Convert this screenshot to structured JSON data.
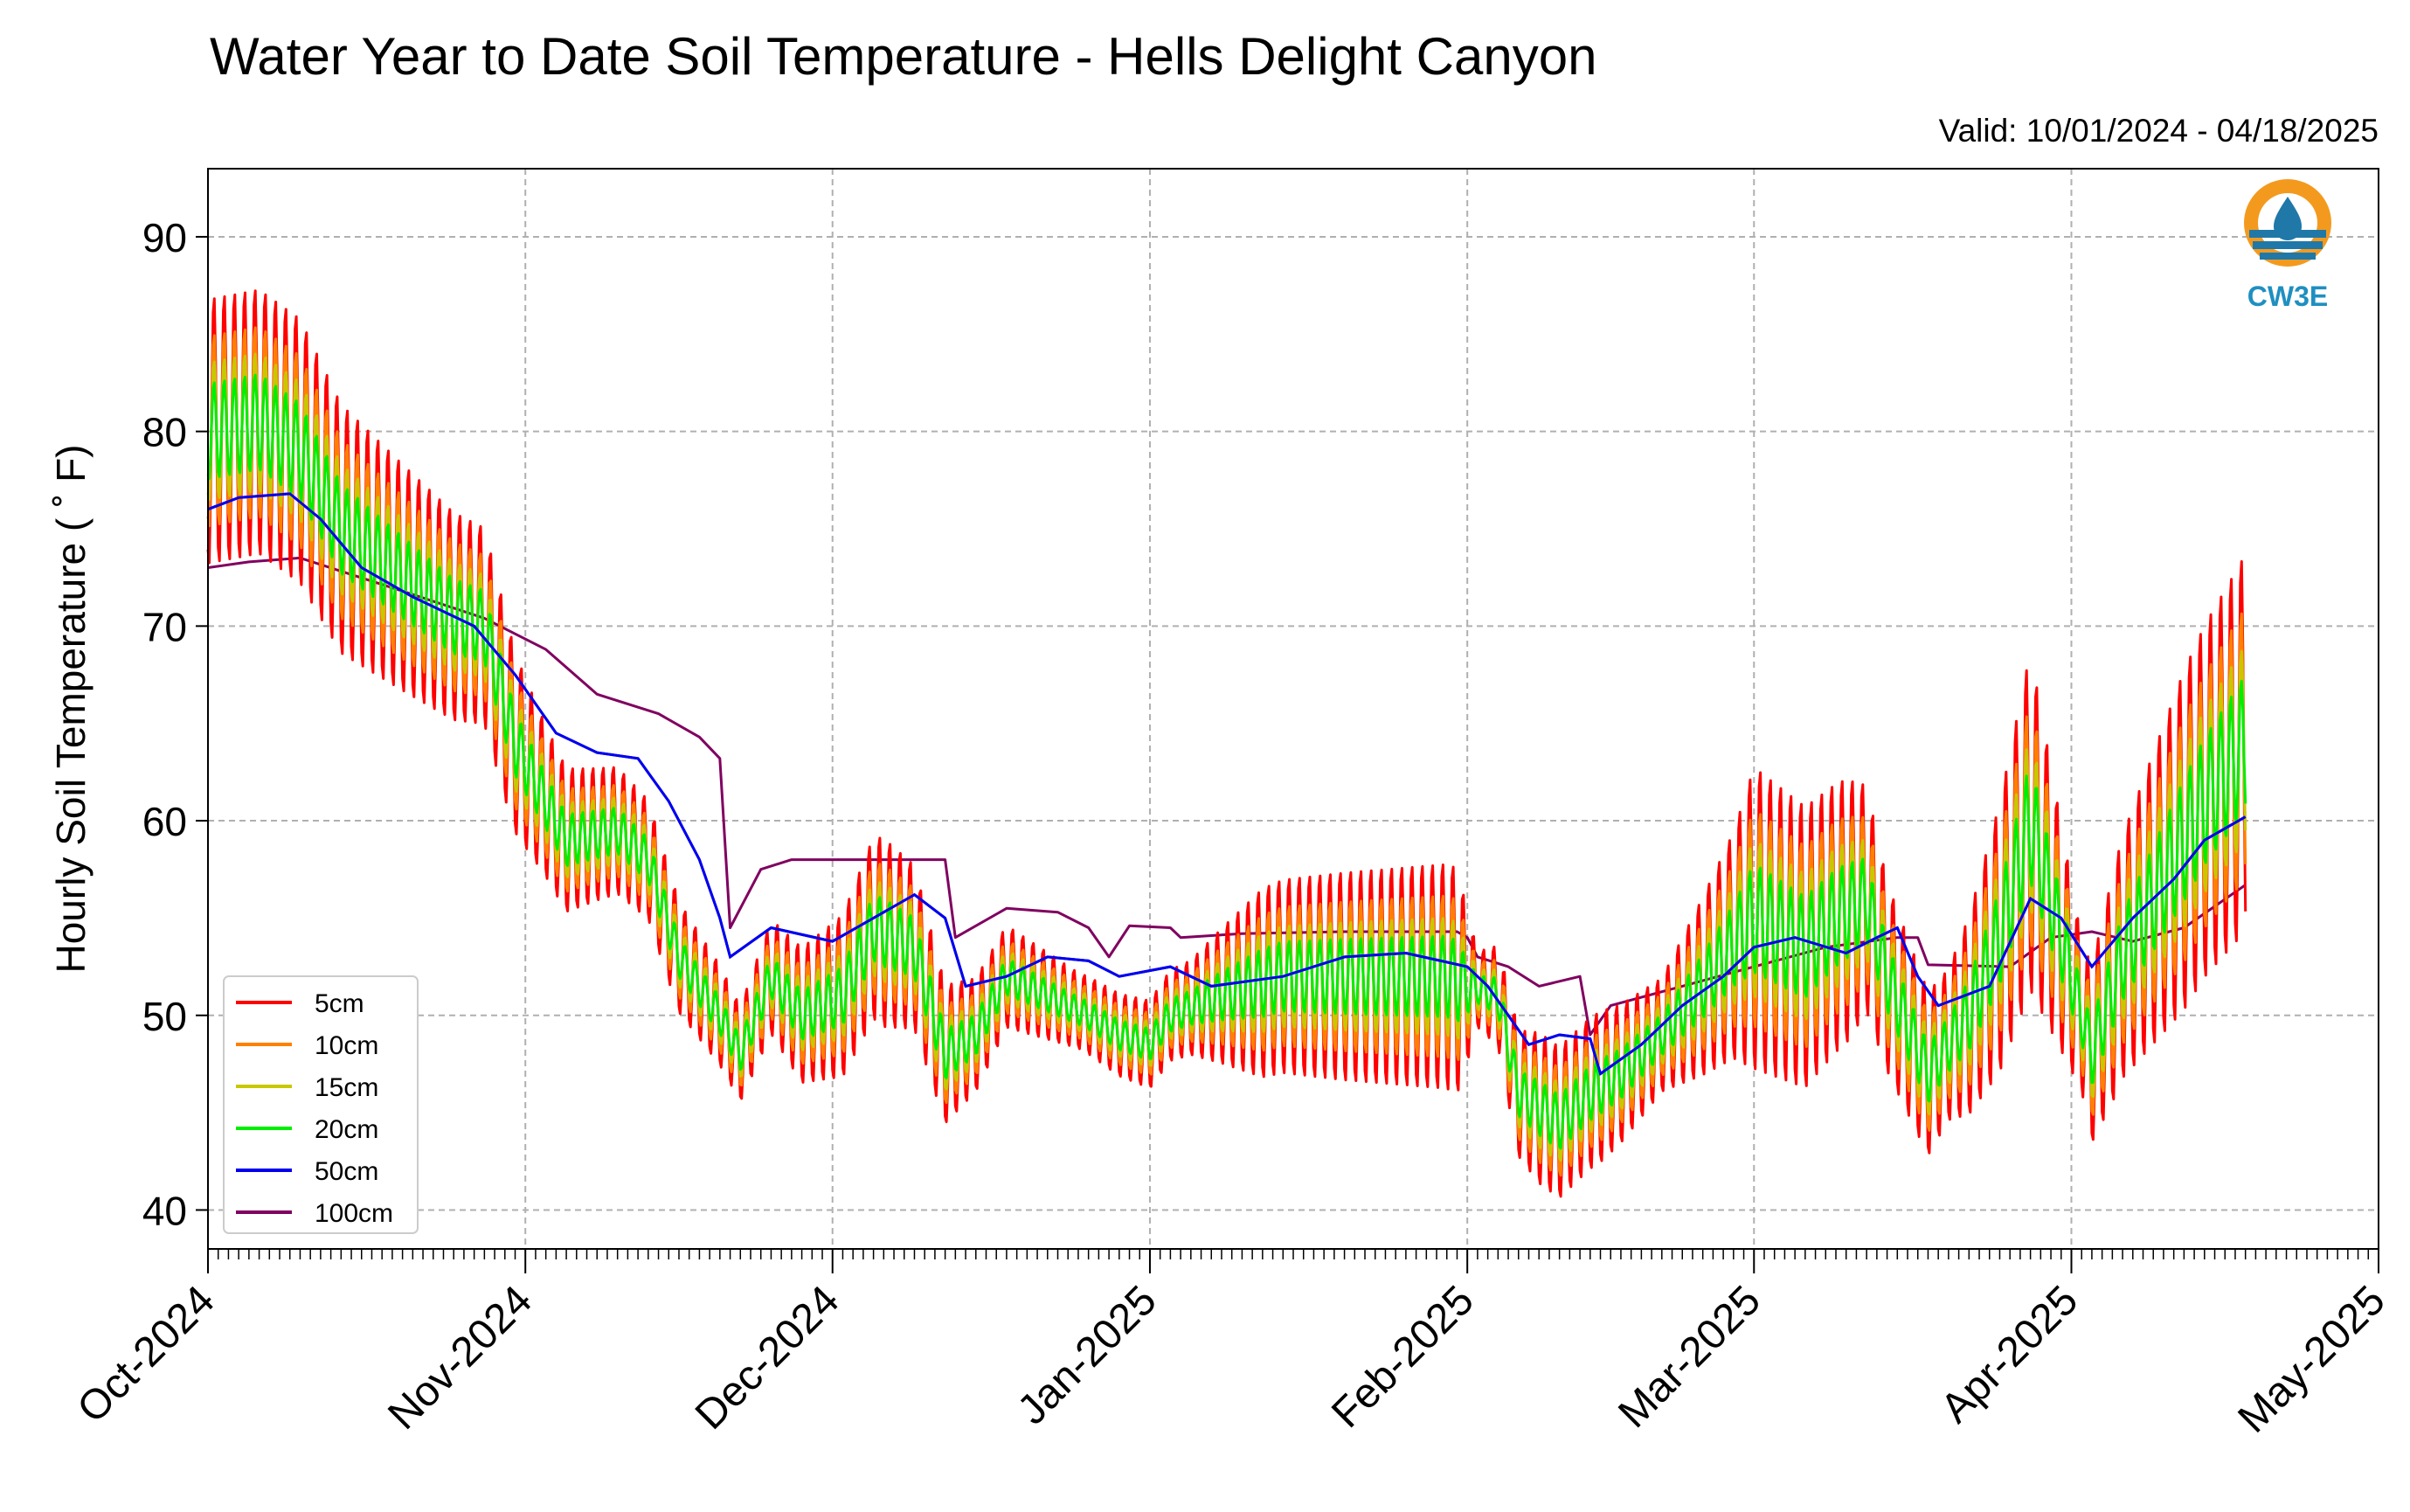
{
  "chart_data": {
    "type": "line",
    "title": "Water Year to Date Soil Temperature - Hells Delight Canyon",
    "valid_label": "Valid: 10/01/2024 - 04/18/2025",
    "logo_text": "CW3E",
    "ylabel": "Hourly Soil Temperature ( ˚ F)",
    "xlabel": "",
    "x_range": [
      "2024-10-01",
      "2025-05-01"
    ],
    "ylim": [
      38,
      93.5
    ],
    "y_ticks": [
      40,
      50,
      60,
      70,
      80,
      90
    ],
    "x_ticks": [
      {
        "date": "2024-10-01",
        "label": "Oct-2024"
      },
      {
        "date": "2024-11-01",
        "label": "Nov-2024"
      },
      {
        "date": "2024-12-01",
        "label": "Dec-2024"
      },
      {
        "date": "2025-01-01",
        "label": "Jan-2025"
      },
      {
        "date": "2025-02-01",
        "label": "Feb-2025"
      },
      {
        "date": "2025-03-01",
        "label": "Mar-2025"
      },
      {
        "date": "2025-04-01",
        "label": "Apr-2025"
      },
      {
        "date": "2025-05-01",
        "label": "May-2025"
      }
    ],
    "grid": true,
    "legend_position": "lower-left",
    "series": [
      {
        "name": "5cm",
        "color": "#ff0000",
        "amplitude": 1.0
      },
      {
        "name": "10cm",
        "color": "#ff8000",
        "amplitude": 0.72
      },
      {
        "name": "15cm",
        "color": "#c8c800",
        "amplitude": 0.52
      },
      {
        "name": "20cm",
        "color": "#00ee00",
        "amplitude": 0.36
      },
      {
        "name": "50cm",
        "color": "#0000ee",
        "amplitude": 0
      },
      {
        "name": "100cm",
        "color": "#800060",
        "amplitude": 0
      }
    ],
    "shallow_daily_mean": [
      [
        "2024-10-01",
        80
      ],
      [
        "2024-10-06",
        80.5
      ],
      [
        "2024-10-10",
        79
      ],
      [
        "2024-10-14",
        75
      ],
      [
        "2024-10-20",
        72.5
      ],
      [
        "2024-10-25",
        70.5
      ],
      [
        "2024-10-28",
        70
      ],
      [
        "2024-10-31",
        64
      ],
      [
        "2024-11-02",
        62
      ],
      [
        "2024-11-05",
        59
      ],
      [
        "2024-11-10",
        59.5
      ],
      [
        "2024-11-13",
        58
      ],
      [
        "2024-11-16",
        53
      ],
      [
        "2024-11-20",
        50
      ],
      [
        "2024-11-22",
        48
      ],
      [
        "2024-11-25",
        52
      ],
      [
        "2024-11-28",
        50
      ],
      [
        "2024-12-02",
        51
      ],
      [
        "2024-12-05",
        54.5
      ],
      [
        "2024-12-09",
        53.5
      ],
      [
        "2024-12-12",
        48
      ],
      [
        "2024-12-15",
        49
      ],
      [
        "2024-12-18",
        52
      ],
      [
        "2024-12-22",
        51
      ],
      [
        "2024-12-26",
        50
      ],
      [
        "2024-12-29",
        49
      ],
      [
        "2025-01-01",
        48.5
      ],
      [
        "2025-01-03",
        50
      ],
      [
        "2025-01-08",
        51
      ],
      [
        "2025-01-14",
        52
      ],
      [
        "2025-01-20",
        52
      ],
      [
        "2025-01-26",
        52
      ],
      [
        "2025-01-30",
        52
      ],
      [
        "2025-02-01",
        51.5
      ],
      [
        "2025-02-04",
        51
      ],
      [
        "2025-02-06",
        46
      ],
      [
        "2025-02-10",
        44.5
      ],
      [
        "2025-02-13",
        46
      ],
      [
        "2025-02-16",
        47
      ],
      [
        "2025-02-20",
        49
      ],
      [
        "2025-02-24",
        51.5
      ],
      [
        "2025-03-01",
        55
      ],
      [
        "2025-03-06",
        53.5
      ],
      [
        "2025-03-09",
        55
      ],
      [
        "2025-03-12",
        56
      ],
      [
        "2025-03-14",
        52
      ],
      [
        "2025-03-18",
        47
      ],
      [
        "2025-03-22",
        50
      ],
      [
        "2025-03-25",
        54
      ],
      [
        "2025-03-28",
        60
      ],
      [
        "2025-03-31",
        54
      ],
      [
        "2025-04-03",
        48
      ],
      [
        "2025-04-06",
        53
      ],
      [
        "2025-04-10",
        57
      ],
      [
        "2025-04-14",
        61
      ],
      [
        "2025-04-18",
        64
      ]
    ],
    "50cm_values": [
      [
        "2024-10-01",
        76
      ],
      [
        "2024-10-04",
        76.6
      ],
      [
        "2024-10-09",
        76.8
      ],
      [
        "2024-10-12",
        75.5
      ],
      [
        "2024-10-16",
        73
      ],
      [
        "2024-10-21",
        71.5
      ],
      [
        "2024-10-27",
        70
      ],
      [
        "2024-10-31",
        67.5
      ],
      [
        "2024-11-04",
        64.5
      ],
      [
        "2024-11-08",
        63.5
      ],
      [
        "2024-11-12",
        63.2
      ],
      [
        "2024-11-15",
        61
      ],
      [
        "2024-11-18",
        58
      ],
      [
        "2024-11-20",
        55
      ],
      [
        "2024-11-21",
        53
      ],
      [
        "2024-11-25",
        54.5
      ],
      [
        "2024-12-01",
        53.8
      ],
      [
        "2024-12-05",
        55
      ],
      [
        "2024-12-09",
        56.2
      ],
      [
        "2024-12-12",
        55
      ],
      [
        "2024-12-14",
        51.5
      ],
      [
        "2024-12-18",
        52
      ],
      [
        "2024-12-22",
        53
      ],
      [
        "2024-12-26",
        52.8
      ],
      [
        "2024-12-29",
        52
      ],
      [
        "2025-01-03",
        52.5
      ],
      [
        "2025-01-07",
        51.5
      ],
      [
        "2025-01-14",
        52
      ],
      [
        "2025-01-20",
        53
      ],
      [
        "2025-01-26",
        53.2
      ],
      [
        "2025-02-01",
        52.5
      ],
      [
        "2025-02-03",
        51.5
      ],
      [
        "2025-02-05",
        50
      ],
      [
        "2025-02-07",
        48.5
      ],
      [
        "2025-02-10",
        49
      ],
      [
        "2025-02-13",
        48.8
      ],
      [
        "2025-02-14",
        47
      ],
      [
        "2025-02-18",
        48.5
      ],
      [
        "2025-02-22",
        50.5
      ],
      [
        "2025-02-26",
        52
      ],
      [
        "2025-03-01",
        53.5
      ],
      [
        "2025-03-05",
        54
      ],
      [
        "2025-03-10",
        53.2
      ],
      [
        "2025-03-13",
        54
      ],
      [
        "2025-03-15",
        54.5
      ],
      [
        "2025-03-17",
        52
      ],
      [
        "2025-03-19",
        50.5
      ],
      [
        "2025-03-24",
        51.5
      ],
      [
        "2025-03-28",
        56
      ],
      [
        "2025-03-31",
        55
      ],
      [
        "2025-04-03",
        52.5
      ],
      [
        "2025-04-07",
        55
      ],
      [
        "2025-04-11",
        57
      ],
      [
        "2025-04-14",
        59
      ],
      [
        "2025-04-18",
        60.2
      ]
    ],
    "100cm_values": [
      [
        "2024-10-01",
        73
      ],
      [
        "2024-10-05",
        73.3
      ],
      [
        "2024-10-10",
        73.5
      ],
      [
        "2024-10-20",
        71.8
      ],
      [
        "2024-10-28",
        70.4
      ],
      [
        "2024-11-03",
        68.8
      ],
      [
        "2024-11-08",
        66.5
      ],
      [
        "2024-11-14",
        65.5
      ],
      [
        "2024-11-18",
        64.3
      ],
      [
        "2024-11-20",
        63.2
      ],
      [
        "2024-11-21",
        54.5
      ],
      [
        "2024-11-24",
        57.5
      ],
      [
        "2024-11-27",
        58
      ],
      [
        "2024-12-05",
        58
      ],
      [
        "2024-12-12",
        58
      ],
      [
        "2024-12-13",
        54
      ],
      [
        "2024-12-18",
        55.5
      ],
      [
        "2024-12-23",
        55.3
      ],
      [
        "2024-12-26",
        54.5
      ],
      [
        "2024-12-28",
        53
      ],
      [
        "2024-12-30",
        54.6
      ],
      [
        "2025-01-03",
        54.5
      ],
      [
        "2025-01-04",
        54
      ],
      [
        "2025-01-10",
        54.2
      ],
      [
        "2025-01-20",
        54.3
      ],
      [
        "2025-01-31",
        54.3
      ],
      [
        "2025-02-01",
        54
      ],
      [
        "2025-02-02",
        53
      ],
      [
        "2025-02-05",
        52.5
      ],
      [
        "2025-02-08",
        51.5
      ],
      [
        "2025-02-12",
        52
      ],
      [
        "2025-02-13",
        49
      ],
      [
        "2025-02-15",
        50.5
      ],
      [
        "2025-02-22",
        51.5
      ],
      [
        "2025-03-01",
        52.5
      ],
      [
        "2025-03-08",
        53.5
      ],
      [
        "2025-03-15",
        54
      ],
      [
        "2025-03-17",
        54
      ],
      [
        "2025-03-18",
        52.6
      ],
      [
        "2025-03-26",
        52.5
      ],
      [
        "2025-03-30",
        54
      ],
      [
        "2025-04-03",
        54.3
      ],
      [
        "2025-04-07",
        53.8
      ],
      [
        "2025-04-12",
        54.5
      ],
      [
        "2025-04-18",
        56.7
      ]
    ],
    "5cm_daily_amplitude": [
      [
        "2024-10-01",
        7
      ],
      [
        "2024-10-10",
        7
      ],
      [
        "2024-10-20",
        6
      ],
      [
        "2024-10-30",
        5
      ],
      [
        "2024-11-03",
        4
      ],
      [
        "2024-11-08",
        3.5
      ],
      [
        "2024-11-15",
        3
      ],
      [
        "2024-11-22",
        2.5
      ],
      [
        "2024-12-06",
        5
      ],
      [
        "2024-12-15",
        3
      ],
      [
        "2024-12-25",
        2
      ],
      [
        "2025-01-05",
        2.5
      ],
      [
        "2025-01-12",
        5
      ],
      [
        "2025-01-20",
        5.5
      ],
      [
        "2025-01-31",
        6
      ],
      [
        "2025-02-02",
        2
      ],
      [
        "2025-02-08",
        4
      ],
      [
        "2025-02-14",
        4
      ],
      [
        "2025-02-20",
        3
      ],
      [
        "2025-02-27",
        6
      ],
      [
        "2025-03-01",
        8
      ],
      [
        "2025-03-10",
        7
      ],
      [
        "2025-03-14",
        5
      ],
      [
        "2025-03-20",
        4
      ],
      [
        "2025-03-28",
        9
      ],
      [
        "2025-04-02",
        4
      ],
      [
        "2025-04-05",
        6
      ],
      [
        "2025-04-12",
        9
      ],
      [
        "2025-04-18",
        10
      ]
    ]
  }
}
